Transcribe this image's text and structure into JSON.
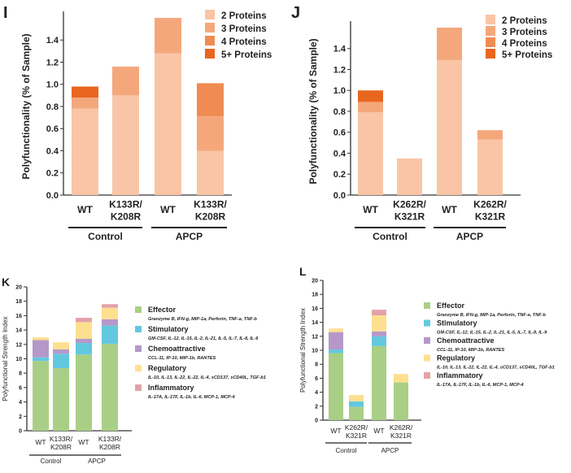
{
  "chart_data": [
    {
      "panel": "I",
      "type": "bar",
      "stacked": true,
      "ylabel": "Polyfunctionality (% of Sample)",
      "ylim": [
        0,
        1.6
      ],
      "yticks": [
        "0.0",
        "0.2",
        "0.4",
        "0.6",
        "0.8",
        "1.0",
        "1.2",
        "1.4"
      ],
      "categories": [
        "WT",
        "K133R/\nK208R",
        "WT",
        "K133R/\nK208R"
      ],
      "groups": [
        {
          "name": "Control",
          "span": [
            0,
            1
          ]
        },
        {
          "name": "APCP",
          "span": [
            2,
            3
          ]
        }
      ],
      "legend_position": "top-right",
      "series": [
        {
          "name": "2 Proteins",
          "color": "#f9c5a6",
          "values": [
            0.78,
            0.9,
            1.28,
            0.4
          ]
        },
        {
          "name": "3 Proteins",
          "color": "#f5a77c",
          "values": [
            0.1,
            0.26,
            0.32,
            0.31
          ]
        },
        {
          "name": "4 Proteins",
          "color": "#f08c53",
          "values": [
            0,
            0,
            0,
            0.3
          ]
        },
        {
          "name": "5+ Proteins",
          "color": "#e8661f",
          "values": [
            0.1,
            0,
            0,
            0
          ]
        }
      ]
    },
    {
      "panel": "J",
      "type": "bar",
      "stacked": true,
      "ylabel": "Polyfunctionality (% of Sample)",
      "ylim": [
        0,
        1.6
      ],
      "yticks": [
        "0.0",
        "0.2",
        "0.4",
        "0.6",
        "0.8",
        "1.0",
        "1.2",
        "1.4"
      ],
      "categories": [
        "WT",
        "K262R/\nK321R",
        "WT",
        "K262R/\nK321R"
      ],
      "groups": [
        {
          "name": "Control",
          "span": [
            0,
            1
          ]
        },
        {
          "name": "APCP",
          "span": [
            2,
            3
          ]
        }
      ],
      "legend_position": "top-right",
      "series": [
        {
          "name": "2 Proteins",
          "color": "#f9c5a6",
          "values": [
            0.79,
            0.35,
            1.29,
            0.53
          ]
        },
        {
          "name": "3 Proteins",
          "color": "#f5a77c",
          "values": [
            0.1,
            0,
            0.31,
            0.09
          ]
        },
        {
          "name": "4 Proteins",
          "color": "#f08c53",
          "values": [
            0,
            0,
            0,
            0
          ]
        },
        {
          "name": "5+ Proteins",
          "color": "#e8661f",
          "values": [
            0.11,
            0,
            0,
            0
          ]
        }
      ]
    },
    {
      "panel": "K",
      "type": "bar",
      "stacked": true,
      "ylabel": "Polyfunctional Strength Index",
      "ylim": [
        0,
        20
      ],
      "yticks": [
        "0",
        "2",
        "4",
        "6",
        "8",
        "10",
        "12",
        "14",
        "16",
        "18",
        "20"
      ],
      "categories": [
        "WT",
        "K133R/\nK208R",
        "WT",
        "K133R/\nK208R"
      ],
      "groups": [
        {
          "name": "Control",
          "span": [
            0,
            1
          ]
        },
        {
          "name": "APCP",
          "span": [
            2,
            3
          ]
        }
      ],
      "legend_position": "right",
      "series": [
        {
          "name": "Effector",
          "sub": "Granzyme B, IFN-g, MIP-1a, Perforin, TNF-a, TNF-b",
          "color": "#a9cf86",
          "values": [
            9.7,
            8.7,
            10.6,
            12.1
          ]
        },
        {
          "name": "Stimulatory",
          "sub": "GM-CSF, IL-12, IL-15, IL-2, IL-21, IL-5, IL-7, IL-8, IL-9",
          "color": "#62c8df",
          "values": [
            0.5,
            2.0,
            1.6,
            2.5
          ]
        },
        {
          "name": "Chemoattractive",
          "sub": "CCL-11, IP-10, MIP-1b, RANTES",
          "color": "#b598c9",
          "values": [
            2.4,
            0.6,
            0.6,
            0.9
          ]
        },
        {
          "name": "Regulatory",
          "sub": "IL-10, IL-13, IL-22, IL-22, IL-4, sCD137, sCD40L, TGF-b1",
          "color": "#fde08f",
          "values": [
            0.4,
            1.0,
            2.3,
            1.6
          ]
        },
        {
          "name": "Inflammatory",
          "sub": "IL-17A, IL-17F, IL-1b, IL-6, MCP-1, MCP-4",
          "color": "#e3a2a8",
          "values": [
            0,
            0,
            0.6,
            0.5
          ]
        }
      ]
    },
    {
      "panel": "L",
      "type": "bar",
      "stacked": true,
      "ylabel": "Polyfunctional Strength Index",
      "ylim": [
        0,
        20
      ],
      "yticks": [
        "0",
        "2",
        "4",
        "6",
        "8",
        "10",
        "12",
        "14",
        "16",
        "18",
        "20"
      ],
      "categories": [
        "WT",
        "K262R/\nK321R",
        "WT",
        "K262R/\nK321R"
      ],
      "groups": [
        {
          "name": "Control",
          "span": [
            0,
            1
          ]
        },
        {
          "name": "APCP",
          "span": [
            2,
            3
          ]
        }
      ],
      "legend_position": "right",
      "series": [
        {
          "name": "Effector",
          "sub": "Granzyme B, IFN-g, MIP-1a, Perforin, TNF-a, TNF-b",
          "color": "#a9cf86",
          "values": [
            9.6,
            1.9,
            10.6,
            5.4
          ]
        },
        {
          "name": "Stimulatory",
          "sub": "GM-CSF, IL-12, IL-15, IL-2, IL-21, IL-5, IL-7, IL-8, IL-9",
          "color": "#62c8df",
          "values": [
            0.5,
            0.8,
            1.4,
            0
          ]
        },
        {
          "name": "Chemoattractive",
          "sub": "CCL-11, IP-10, MIP-1b, RANTES",
          "color": "#b598c9",
          "values": [
            2.5,
            0,
            0.7,
            0
          ]
        },
        {
          "name": "Regulatory",
          "sub": "IL-10, IL-13, IL-22, IL-22, IL-4, sCD137, sCD40L, TGF-b1",
          "color": "#fde08f",
          "values": [
            0.5,
            0.9,
            2.3,
            1.2
          ]
        },
        {
          "name": "Inflammatory",
          "sub": "IL-17A, IL-17F, IL-1b, IL-6, MCP-1, MCP-4",
          "color": "#e3a2a8",
          "values": [
            0,
            0,
            0.8,
            0
          ]
        }
      ]
    }
  ]
}
